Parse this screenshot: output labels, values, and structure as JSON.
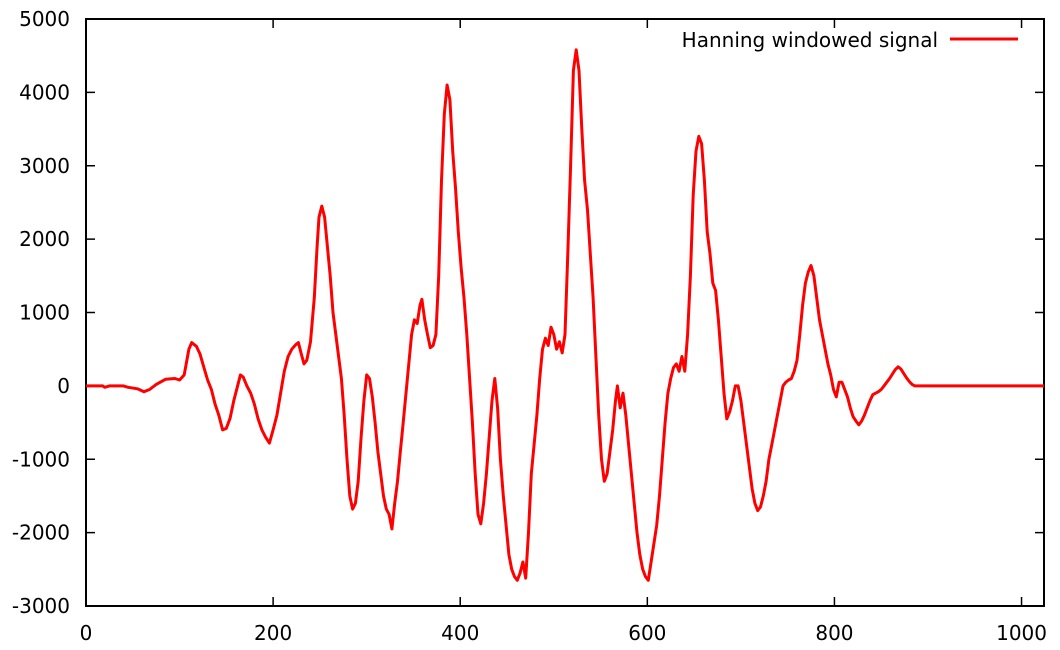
{
  "chart_data": {
    "type": "line",
    "title": "",
    "xlabel": "",
    "ylabel": "",
    "xlim": [
      0,
      1024
    ],
    "ylim": [
      -3000,
      5000
    ],
    "xticks": [
      0,
      200,
      400,
      600,
      800,
      1000
    ],
    "yticks": [
      -3000,
      -2000,
      -1000,
      0,
      1000,
      2000,
      3000,
      4000,
      5000
    ],
    "grid": false,
    "legend_position": "top-right",
    "series": [
      {
        "name": "Hanning windowed signal",
        "color": "#ff0000",
        "points": [
          [
            0,
            0
          ],
          [
            10,
            0
          ],
          [
            18,
            0
          ],
          [
            20,
            -20
          ],
          [
            25,
            0
          ],
          [
            40,
            0
          ],
          [
            45,
            -20
          ],
          [
            55,
            -40
          ],
          [
            62,
            -80
          ],
          [
            68,
            -50
          ],
          [
            75,
            20
          ],
          [
            85,
            90
          ],
          [
            95,
            100
          ],
          [
            100,
            80
          ],
          [
            105,
            150
          ],
          [
            110,
            500
          ],
          [
            113,
            590
          ],
          [
            118,
            540
          ],
          [
            122,
            430
          ],
          [
            126,
            250
          ],
          [
            130,
            80
          ],
          [
            134,
            -50
          ],
          [
            138,
            -250
          ],
          [
            142,
            -400
          ],
          [
            146,
            -600
          ],
          [
            150,
            -580
          ],
          [
            154,
            -440
          ],
          [
            158,
            -200
          ],
          [
            162,
            0
          ],
          [
            165,
            150
          ],
          [
            168,
            120
          ],
          [
            172,
            0
          ],
          [
            176,
            -100
          ],
          [
            180,
            -250
          ],
          [
            184,
            -450
          ],
          [
            188,
            -600
          ],
          [
            192,
            -700
          ],
          [
            196,
            -780
          ],
          [
            200,
            -600
          ],
          [
            204,
            -400
          ],
          [
            208,
            -100
          ],
          [
            212,
            200
          ],
          [
            216,
            400
          ],
          [
            220,
            500
          ],
          [
            224,
            560
          ],
          [
            227,
            590
          ],
          [
            230,
            440
          ],
          [
            233,
            300
          ],
          [
            236,
            350
          ],
          [
            240,
            600
          ],
          [
            244,
            1200
          ],
          [
            247,
            1900
          ],
          [
            249,
            2300
          ],
          [
            252,
            2450
          ],
          [
            255,
            2300
          ],
          [
            258,
            1900
          ],
          [
            261,
            1500
          ],
          [
            264,
            1000
          ],
          [
            267,
            700
          ],
          [
            270,
            400
          ],
          [
            273,
            100
          ],
          [
            276,
            -400
          ],
          [
            279,
            -1000
          ],
          [
            282,
            -1500
          ],
          [
            285,
            -1680
          ],
          [
            288,
            -1600
          ],
          [
            291,
            -1300
          ],
          [
            294,
            -700
          ],
          [
            297,
            -200
          ],
          [
            300,
            150
          ],
          [
            303,
            100
          ],
          [
            306,
            -150
          ],
          [
            309,
            -500
          ],
          [
            312,
            -900
          ],
          [
            315,
            -1200
          ],
          [
            318,
            -1500
          ],
          [
            321,
            -1680
          ],
          [
            324,
            -1750
          ],
          [
            327,
            -1950
          ],
          [
            330,
            -1600
          ],
          [
            333,
            -1300
          ],
          [
            336,
            -900
          ],
          [
            339,
            -500
          ],
          [
            342,
            -100
          ],
          [
            345,
            300
          ],
          [
            348,
            700
          ],
          [
            351,
            900
          ],
          [
            354,
            850
          ],
          [
            357,
            1100
          ],
          [
            359,
            1180
          ],
          [
            362,
            900
          ],
          [
            365,
            700
          ],
          [
            368,
            520
          ],
          [
            371,
            550
          ],
          [
            374,
            700
          ],
          [
            377,
            1500
          ],
          [
            380,
            2800
          ],
          [
            383,
            3700
          ],
          [
            386,
            4100
          ],
          [
            389,
            3900
          ],
          [
            392,
            3200
          ],
          [
            395,
            2700
          ],
          [
            398,
            2100
          ],
          [
            401,
            1600
          ],
          [
            404,
            1200
          ],
          [
            407,
            700
          ],
          [
            410,
            100
          ],
          [
            413,
            -500
          ],
          [
            416,
            -1200
          ],
          [
            419,
            -1750
          ],
          [
            422,
            -1880
          ],
          [
            425,
            -1600
          ],
          [
            428,
            -1200
          ],
          [
            431,
            -700
          ],
          [
            434,
            -200
          ],
          [
            437,
            100
          ],
          [
            440,
            -300
          ],
          [
            443,
            -1000
          ],
          [
            446,
            -1500
          ],
          [
            449,
            -1900
          ],
          [
            452,
            -2300
          ],
          [
            455,
            -2500
          ],
          [
            458,
            -2600
          ],
          [
            461,
            -2650
          ],
          [
            464,
            -2550
          ],
          [
            467,
            -2400
          ],
          [
            470,
            -2620
          ],
          [
            473,
            -2000
          ],
          [
            476,
            -1200
          ],
          [
            479,
            -800
          ],
          [
            482,
            -400
          ],
          [
            485,
            100
          ],
          [
            488,
            500
          ],
          [
            491,
            650
          ],
          [
            494,
            550
          ],
          [
            497,
            800
          ],
          [
            500,
            700
          ],
          [
            503,
            500
          ],
          [
            506,
            600
          ],
          [
            509,
            450
          ],
          [
            512,
            700
          ],
          [
            515,
            1800
          ],
          [
            518,
            3000
          ],
          [
            521,
            4300
          ],
          [
            524,
            4580
          ],
          [
            527,
            4300
          ],
          [
            530,
            3500
          ],
          [
            533,
            2800
          ],
          [
            536,
            2400
          ],
          [
            539,
            1800
          ],
          [
            542,
            1200
          ],
          [
            545,
            400
          ],
          [
            548,
            -400
          ],
          [
            551,
            -1000
          ],
          [
            554,
            -1300
          ],
          [
            557,
            -1200
          ],
          [
            560,
            -900
          ],
          [
            563,
            -600
          ],
          [
            566,
            -200
          ],
          [
            568,
            0
          ],
          [
            571,
            -300
          ],
          [
            574,
            -100
          ],
          [
            577,
            -400
          ],
          [
            580,
            -800
          ],
          [
            583,
            -1200
          ],
          [
            586,
            -1600
          ],
          [
            589,
            -2000
          ],
          [
            592,
            -2300
          ],
          [
            595,
            -2500
          ],
          [
            598,
            -2600
          ],
          [
            601,
            -2650
          ],
          [
            604,
            -2400
          ],
          [
            607,
            -2150
          ],
          [
            610,
            -1900
          ],
          [
            613,
            -1500
          ],
          [
            616,
            -1000
          ],
          [
            619,
            -500
          ],
          [
            622,
            -100
          ],
          [
            625,
            100
          ],
          [
            628,
            250
          ],
          [
            631,
            300
          ],
          [
            634,
            200
          ],
          [
            637,
            400
          ],
          [
            640,
            200
          ],
          [
            643,
            700
          ],
          [
            646,
            1500
          ],
          [
            649,
            2600
          ],
          [
            652,
            3200
          ],
          [
            655,
            3400
          ],
          [
            658,
            3300
          ],
          [
            661,
            2800
          ],
          [
            664,
            2100
          ],
          [
            667,
            1800
          ],
          [
            670,
            1400
          ],
          [
            673,
            1300
          ],
          [
            676,
            900
          ],
          [
            679,
            400
          ],
          [
            682,
            -100
          ],
          [
            685,
            -450
          ],
          [
            688,
            -350
          ],
          [
            691,
            -200
          ],
          [
            694,
            0
          ],
          [
            697,
            0
          ],
          [
            700,
            -200
          ],
          [
            703,
            -500
          ],
          [
            706,
            -800
          ],
          [
            709,
            -1100
          ],
          [
            712,
            -1400
          ],
          [
            715,
            -1600
          ],
          [
            718,
            -1700
          ],
          [
            721,
            -1650
          ],
          [
            724,
            -1500
          ],
          [
            727,
            -1300
          ],
          [
            730,
            -1000
          ],
          [
            733,
            -800
          ],
          [
            736,
            -600
          ],
          [
            739,
            -400
          ],
          [
            742,
            -200
          ],
          [
            745,
            0
          ],
          [
            748,
            50
          ],
          [
            751,
            80
          ],
          [
            754,
            100
          ],
          [
            757,
            200
          ],
          [
            760,
            350
          ],
          [
            763,
            700
          ],
          [
            766,
            1100
          ],
          [
            769,
            1400
          ],
          [
            772,
            1550
          ],
          [
            775,
            1640
          ],
          [
            778,
            1500
          ],
          [
            781,
            1200
          ],
          [
            784,
            900
          ],
          [
            787,
            700
          ],
          [
            790,
            500
          ],
          [
            793,
            300
          ],
          [
            796,
            150
          ],
          [
            799,
            -50
          ],
          [
            802,
            -150
          ],
          [
            805,
            50
          ],
          [
            808,
            50
          ],
          [
            811,
            -50
          ],
          [
            814,
            -150
          ],
          [
            817,
            -300
          ],
          [
            820,
            -420
          ],
          [
            823,
            -480
          ],
          [
            826,
            -530
          ],
          [
            829,
            -480
          ],
          [
            832,
            -400
          ],
          [
            835,
            -300
          ],
          [
            838,
            -200
          ],
          [
            841,
            -120
          ],
          [
            844,
            -100
          ],
          [
            847,
            -80
          ],
          [
            850,
            -50
          ],
          [
            853,
            0
          ],
          [
            856,
            50
          ],
          [
            859,
            100
          ],
          [
            862,
            160
          ],
          [
            865,
            220
          ],
          [
            868,
            260
          ],
          [
            871,
            230
          ],
          [
            874,
            170
          ],
          [
            877,
            110
          ],
          [
            880,
            60
          ],
          [
            883,
            20
          ],
          [
            886,
            0
          ],
          [
            890,
            0
          ],
          [
            900,
            0
          ],
          [
            920,
            0
          ],
          [
            940,
            0
          ],
          [
            960,
            0
          ],
          [
            980,
            0
          ],
          [
            1000,
            0
          ],
          [
            1020,
            0
          ],
          [
            1024,
            0
          ]
        ]
      }
    ]
  }
}
